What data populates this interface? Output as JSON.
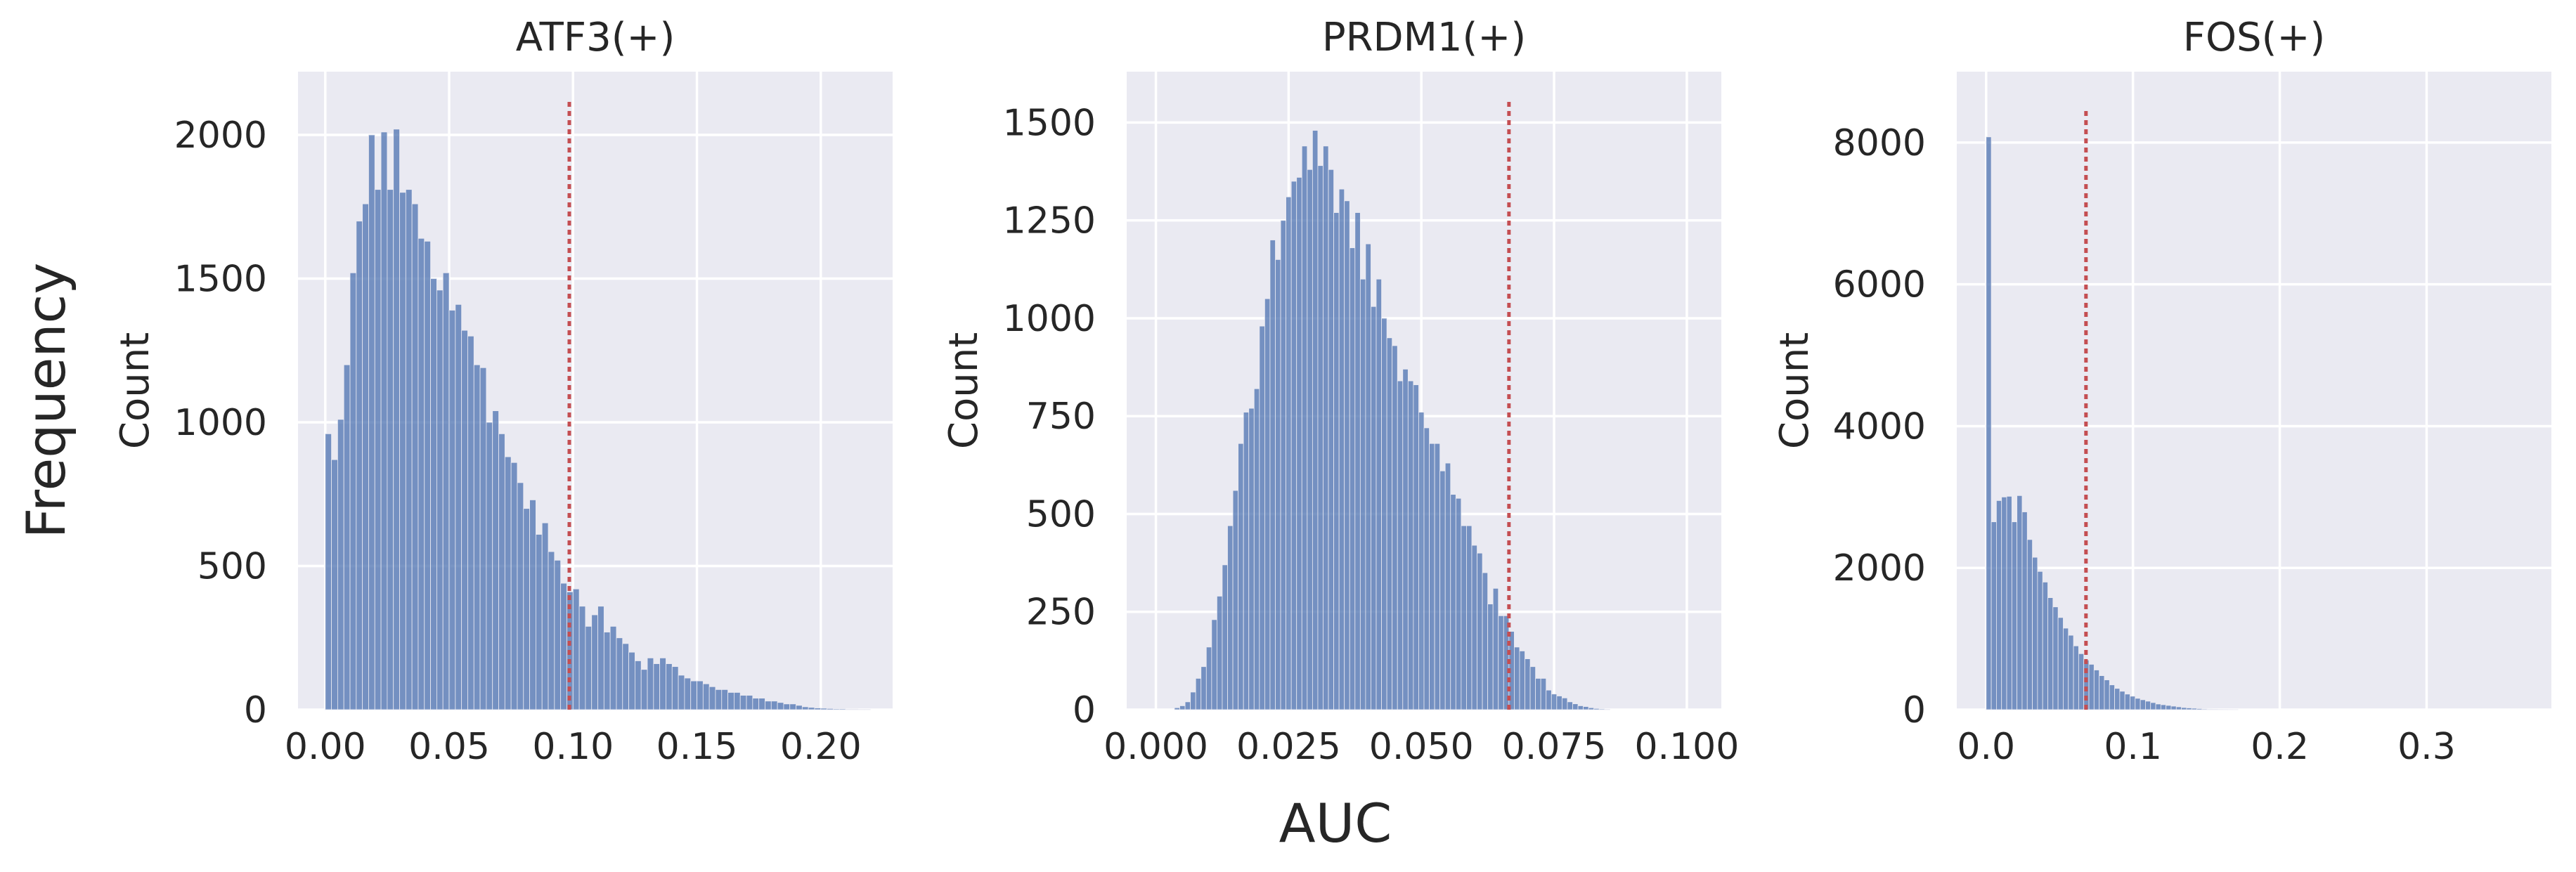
{
  "figure": {
    "supylabel": "Frequency",
    "supxlabel": "AUC"
  },
  "colors": {
    "background": "#ffffff",
    "plot_background": "#eaeaf2",
    "grid": "#ffffff",
    "bars": "#4c72b0",
    "threshold_line": "#c44e52",
    "text": "#262626"
  },
  "chart_data": [
    {
      "type": "histogram",
      "title": "ATF3(+)",
      "xlabel": "",
      "ylabel": "Count",
      "xlim": [
        -0.011,
        0.229
      ],
      "ylim": [
        0,
        2220
      ],
      "xticks": [
        0.0,
        0.05,
        0.1,
        0.15,
        0.2
      ],
      "xtick_labels": [
        "0.00",
        "0.05",
        "0.10",
        "0.15",
        "0.20"
      ],
      "yticks": [
        0,
        500,
        1000,
        1500,
        2000
      ],
      "ytick_labels": [
        "0",
        "500",
        "1000",
        "1500",
        "2000"
      ],
      "bin_start": 0.0,
      "bin_width": 0.0025,
      "counts": [
        960,
        870,
        1010,
        1200,
        1520,
        1700,
        1760,
        2000,
        1810,
        2010,
        1810,
        2020,
        1800,
        1810,
        1760,
        1640,
        1630,
        1500,
        1460,
        1520,
        1390,
        1410,
        1320,
        1300,
        1200,
        1190,
        1000,
        1040,
        960,
        880,
        860,
        790,
        700,
        730,
        610,
        650,
        550,
        520,
        440,
        410,
        420,
        360,
        290,
        330,
        360,
        270,
        290,
        250,
        230,
        200,
        170,
        140,
        180,
        160,
        180,
        160,
        150,
        120,
        110,
        100,
        100,
        90,
        80,
        70,
        70,
        60,
        60,
        50,
        50,
        40,
        40,
        30,
        30,
        25,
        20,
        20,
        15,
        10,
        8,
        6,
        5,
        4,
        3,
        3,
        2,
        2,
        1,
        1
      ],
      "threshold": 0.0985,
      "threshold_ymax": 2120,
      "grid": true
    },
    {
      "type": "histogram",
      "title": "PRDM1(+)",
      "xlabel": "",
      "ylabel": "Count",
      "xlim": [
        -0.0055,
        0.1065
      ],
      "ylim": [
        0,
        1630
      ],
      "xticks": [
        0.0,
        0.025,
        0.05,
        0.075,
        0.1
      ],
      "xtick_labels": [
        "0.000",
        "0.025",
        "0.050",
        "0.075",
        "0.100"
      ],
      "yticks": [
        0,
        250,
        500,
        750,
        1000,
        1250,
        1500
      ],
      "ytick_labels": [
        "0",
        "250",
        "500",
        "750",
        "1000",
        "1250",
        "1500"
      ],
      "bin_start": 0.0035,
      "bin_width": 0.001,
      "counts": [
        5,
        10,
        20,
        45,
        80,
        110,
        160,
        230,
        290,
        370,
        470,
        560,
        680,
        760,
        770,
        820,
        980,
        1050,
        1200,
        1150,
        1250,
        1310,
        1350,
        1360,
        1440,
        1380,
        1480,
        1390,
        1440,
        1380,
        1270,
        1330,
        1300,
        1180,
        1270,
        1100,
        1190,
        1030,
        1100,
        1000,
        950,
        930,
        840,
        870,
        840,
        830,
        760,
        720,
        680,
        680,
        610,
        630,
        550,
        540,
        470,
        470,
        420,
        400,
        350,
        270,
        310,
        240,
        240,
        200,
        160,
        150,
        130,
        110,
        80,
        80,
        50,
        40,
        35,
        30,
        20,
        15,
        10,
        8,
        5,
        3,
        2,
        1
      ],
      "threshold": 0.0665,
      "threshold_ymax": 1560,
      "grid": true
    },
    {
      "type": "histogram",
      "title": "FOS(+)",
      "xlabel": "",
      "ylabel": "Count",
      "xlim": [
        -0.02,
        0.385
      ],
      "ylim": [
        0,
        9000
      ],
      "xticks": [
        0.0,
        0.1,
        0.2,
        0.3
      ],
      "xtick_labels": [
        "0.0",
        "0.1",
        "0.2",
        "0.3"
      ],
      "yticks": [
        0,
        2000,
        4000,
        6000,
        8000
      ],
      "ytick_labels": [
        "0",
        "2000",
        "4000",
        "6000",
        "8000"
      ],
      "bin_start": 0.0,
      "bin_width": 0.0035,
      "counts": [
        8080,
        2650,
        2950,
        3000,
        3010,
        2650,
        3020,
        2790,
        2400,
        2150,
        1950,
        1800,
        1580,
        1450,
        1300,
        1150,
        1050,
        900,
        790,
        700,
        640,
        560,
        480,
        420,
        350,
        300,
        260,
        220,
        190,
        160,
        140,
        120,
        100,
        80,
        70,
        60,
        50,
        40,
        30,
        25,
        20,
        15,
        10,
        8,
        6,
        4,
        3,
        2,
        1
      ],
      "threshold": 0.068,
      "threshold_ymax": 8500,
      "grid": true
    }
  ]
}
